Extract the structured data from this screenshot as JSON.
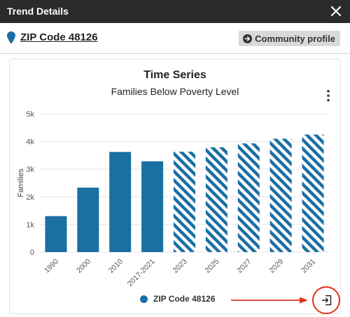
{
  "window": {
    "title": "Trend Details"
  },
  "header": {
    "location": "ZIP Code 48126",
    "community_button": "Community profile"
  },
  "colors": {
    "accent": "#1a6fa3",
    "titlebar": "#2b2b2b",
    "annotation": "#e0331c"
  },
  "chart_data": {
    "type": "bar",
    "title": "Time Series",
    "subtitle": "Families Below Poverty Level",
    "ylabel": "Families",
    "xlabel": "",
    "ylim": [
      0,
      5000
    ],
    "yticks": [
      "0",
      "1k",
      "2k",
      "3k",
      "4k",
      "5k"
    ],
    "categories": [
      "1990",
      "2000",
      "2010",
      "2017-2021",
      "2023",
      "2025",
      "2027",
      "2029",
      "2031"
    ],
    "series": [
      {
        "name": "ZIP Code 48126",
        "values": [
          1300,
          2330,
          3620,
          3280,
          3630,
          3790,
          3930,
          4100,
          4250
        ],
        "projected": [
          false,
          false,
          false,
          false,
          true,
          true,
          true,
          true,
          true
        ]
      }
    ],
    "grid": true,
    "legend": "bottom-center"
  },
  "icons": {
    "close": "close-icon",
    "pin": "map-pin-icon",
    "community": "arrow-circle-right-icon",
    "menu": "kebab-menu-icon",
    "export": "export-icon"
  }
}
